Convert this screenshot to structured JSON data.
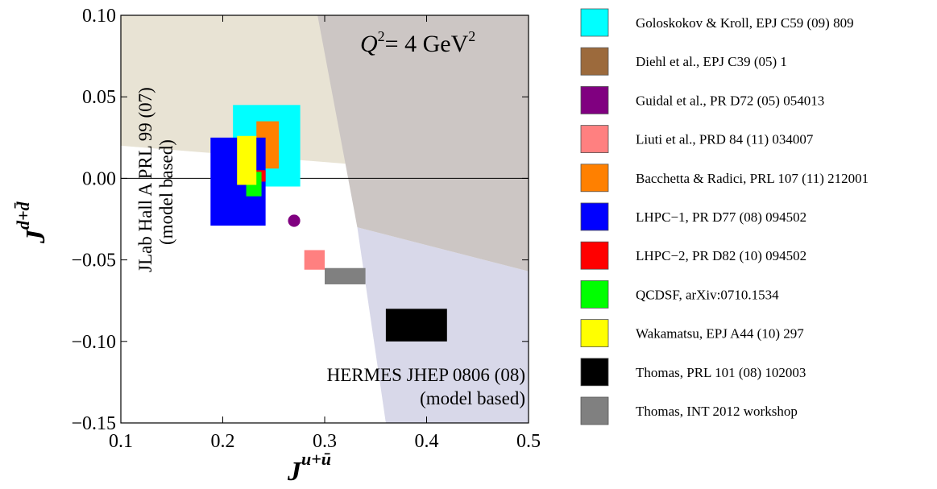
{
  "chart_data": {
    "type": "scatter",
    "x_axis": {
      "label_main": "J",
      "label_sup": "u+ū",
      "range": [
        0.1,
        0.5
      ],
      "ticks": [
        0.1,
        0.2,
        0.3,
        0.4,
        0.5
      ],
      "tick_labels": [
        "0.1",
        "0.2",
        "0.3",
        "0.4",
        "0.5"
      ]
    },
    "y_axis": {
      "label_main": "J",
      "label_sup": "d+d̄",
      "range": [
        -0.15,
        0.1
      ],
      "ticks": [
        -0.15,
        -0.1,
        -0.05,
        0.0,
        0.05,
        0.1
      ],
      "tick_labels": [
        "−0.15",
        "−0.10",
        "−0.05",
        "0.00",
        "0.05",
        "0.10"
      ]
    },
    "annotations": {
      "q2_prefix": "Q",
      "q2_sup": "2",
      "q2_middle": "= 4 GeV",
      "q2_sup2": "2",
      "jlab_line1": "JLab Hall A PRL 99 (07)",
      "jlab_line2": "(model based)",
      "hermes_line1": "HERMES JHEP 0806 (08)",
      "hermes_line2": "(model based)"
    },
    "regions": [
      {
        "name": "JLab Hall A",
        "color": "#e8e3d4",
        "points": [
          [
            0.1,
            0.1
          ],
          [
            0.293,
            0.1
          ],
          [
            0.5,
            -0.002
          ],
          [
            0.5,
            0.0
          ],
          [
            0.1,
            0.02
          ]
        ]
      },
      {
        "name": "HERMES",
        "color": "#d8d8e9",
        "points": [
          [
            0.332,
            -0.03
          ],
          [
            0.5,
            -0.057
          ],
          [
            0.5,
            -0.15
          ],
          [
            0.36,
            -0.15
          ]
        ]
      },
      {
        "name": "overlap",
        "color": "#ccc6c4",
        "points": [
          [
            0.293,
            0.1
          ],
          [
            0.5,
            0.1
          ],
          [
            0.5,
            -0.057
          ],
          [
            0.332,
            -0.03
          ]
        ]
      }
    ],
    "series": [
      {
        "name": "Goloskokov & Kroll, EPJ C59 (09) 809",
        "color": "#00ffff",
        "shape": "rect",
        "x": [
          0.21,
          0.276
        ],
        "y": [
          -0.005,
          0.045
        ]
      },
      {
        "name": "Diehl et al., EPJ C39 (05) 1",
        "color": "#9c6a3c",
        "shape": "rect",
        "x": [
          0.208,
          0.223
        ],
        "y": [
          -0.011,
          0.017
        ]
      },
      {
        "name": "Guidal et al., PR D72 (05) 054013",
        "color": "#800080",
        "shape": "point",
        "x": 0.27,
        "y": -0.026,
        "r": 0.006
      },
      {
        "name": "Liuti et al., PRD 84 (11) 034007",
        "color": "#ff8080",
        "shape": "rect",
        "x": [
          0.28,
          0.3
        ],
        "y": [
          -0.056,
          -0.044
        ]
      },
      {
        "name": "Bacchetta & Radici, PRL 107 (11) 212001",
        "color": "#ff8000",
        "shape": "rect",
        "x": [
          0.233,
          0.255
        ],
        "y": [
          0.006,
          0.035
        ]
      },
      {
        "name": "LHPC−1, PR D77 (08) 094502",
        "color": "#0000ff",
        "shape": "rect",
        "x": [
          0.188,
          0.242
        ],
        "y": [
          -0.029,
          0.025
        ]
      },
      {
        "name": "LHPC−2, PR D82 (10) 094502",
        "color": "#ff0000",
        "shape": "rect",
        "x": [
          0.23,
          0.242
        ],
        "y": [
          -0.002,
          0.005
        ]
      },
      {
        "name": "QCDSF, arXiv:0710.1534",
        "color": "#00ff00",
        "shape": "rect",
        "x": [
          0.223,
          0.238
        ],
        "y": [
          -0.011,
          0.004
        ]
      },
      {
        "name": "Wakamatsu, EPJ A44 (10) 297",
        "color": "#ffff00",
        "shape": "rect",
        "x": [
          0.214,
          0.233
        ],
        "y": [
          -0.004,
          0.026
        ]
      },
      {
        "name": "Thomas, PRL 101 (08) 102003",
        "color": "#000000",
        "shape": "rect",
        "x": [
          0.36,
          0.42
        ],
        "y": [
          -0.1,
          -0.08
        ]
      },
      {
        "name": "Thomas, INT 2012 workshop",
        "color": "#808080",
        "shape": "rect",
        "x": [
          0.3,
          0.34
        ],
        "y": [
          -0.065,
          -0.055
        ]
      }
    ],
    "legend": {
      "placement": "right"
    }
  }
}
